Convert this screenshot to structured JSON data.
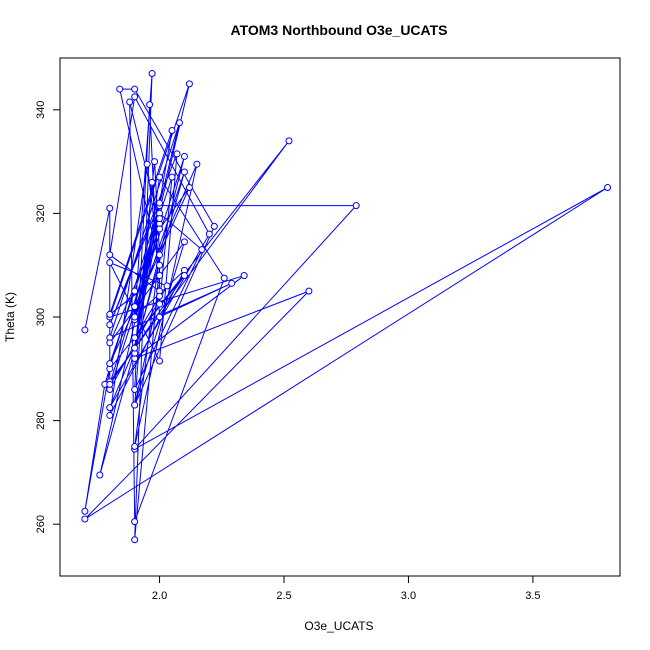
{
  "chart_data": {
    "type": "line",
    "title": "ATOM3 Northbound O3e_UCATS",
    "xlabel": "O3e_UCATS",
    "ylabel": "Theta (K)",
    "xlim": [
      1.6,
      3.85
    ],
    "ylim": [
      250,
      350
    ],
    "x_ticks": [
      2.0,
      2.5,
      3.0,
      3.5
    ],
    "x_tick_labels": [
      "2.0",
      "2.5",
      "3.0",
      "3.5"
    ],
    "y_ticks": [
      260,
      280,
      300,
      320,
      340
    ],
    "y_tick_labels": [
      "260",
      "280",
      "300",
      "320",
      "340"
    ],
    "grid": false,
    "legend": "none",
    "series": [
      {
        "color": "#0000ff",
        "marker": "open-circle",
        "points": [
          [
            1.7,
            297.5
          ],
          [
            1.8,
            321.0
          ],
          [
            1.8,
            287.5
          ],
          [
            2.52,
            334.0
          ],
          [
            1.8,
            290.0
          ],
          [
            1.7,
            262.5
          ],
          [
            1.78,
            287.0
          ],
          [
            2.0,
            321.5
          ],
          [
            2.79,
            321.5
          ],
          [
            1.9,
            274.5
          ],
          [
            3.8,
            325.0
          ],
          [
            1.7,
            261.0
          ],
          [
            2.6,
            305.0
          ],
          [
            1.9,
            292.0
          ],
          [
            2.34,
            308.0
          ],
          [
            1.8,
            300.0
          ],
          [
            2.12,
            345.0
          ],
          [
            1.9,
            300.0
          ],
          [
            1.97,
            347.0
          ],
          [
            1.9,
            257.0
          ],
          [
            2.0,
            310.0
          ],
          [
            1.84,
            344.0
          ],
          [
            1.9,
            344.0
          ],
          [
            2.22,
            317.5
          ],
          [
            1.9,
            283.0
          ],
          [
            2.0,
            305.0
          ],
          [
            1.8,
            312.0
          ],
          [
            1.9,
            342.5
          ],
          [
            2.2,
            316.0
          ],
          [
            1.8,
            282.5
          ],
          [
            1.9,
            294.0
          ],
          [
            2.0,
            327.0
          ],
          [
            2.26,
            307.5
          ],
          [
            1.9,
            260.5
          ],
          [
            1.88,
            341.5
          ],
          [
            2.0,
            318.0
          ],
          [
            1.9,
            299.5
          ],
          [
            2.1,
            328.0
          ],
          [
            1.76,
            269.5
          ],
          [
            2.0,
            320.0
          ],
          [
            2.17,
            313.0
          ],
          [
            1.9,
            286.0
          ],
          [
            1.96,
            341.0
          ],
          [
            2.0,
            300.0
          ],
          [
            2.29,
            306.5
          ],
          [
            1.8,
            296.0
          ],
          [
            2.08,
            337.5
          ],
          [
            1.9,
            302.0
          ],
          [
            2.15,
            329.5
          ],
          [
            1.9,
            275.0
          ],
          [
            2.0,
            312.0
          ],
          [
            1.98,
            330.0
          ],
          [
            1.9,
            293.0
          ],
          [
            2.1,
            331.0
          ],
          [
            1.8,
            286.0
          ],
          [
            2.03,
            306.0
          ],
          [
            1.8,
            310.5
          ],
          [
            2.0,
            291.5
          ],
          [
            2.07,
            331.5
          ],
          [
            1.8,
            298.5
          ],
          [
            2.0,
            322.0
          ],
          [
            1.9,
            300.0
          ],
          [
            2.1,
            309.0
          ],
          [
            1.8,
            281.0
          ],
          [
            1.95,
            329.5
          ],
          [
            2.0,
            310.0
          ],
          [
            2.0,
            302.5
          ],
          [
            2.05,
            327.0
          ],
          [
            1.9,
            305.0
          ],
          [
            1.8,
            291.0
          ],
          [
            2.12,
            325.0
          ],
          [
            2.0,
            317.0
          ],
          [
            1.8,
            295.0
          ],
          [
            2.1,
            314.5
          ],
          [
            1.9,
            283.0
          ],
          [
            1.97,
            326.0
          ],
          [
            2.0,
            308.0
          ],
          [
            1.8,
            300.5
          ],
          [
            2.05,
            336.0
          ],
          [
            1.9,
            294.0
          ],
          [
            2.0,
            319.0
          ],
          [
            1.8,
            287.0
          ],
          [
            2.1,
            308.0
          ],
          [
            1.9,
            296.0
          ],
          [
            2.0,
            304.0
          ]
        ]
      }
    ]
  }
}
